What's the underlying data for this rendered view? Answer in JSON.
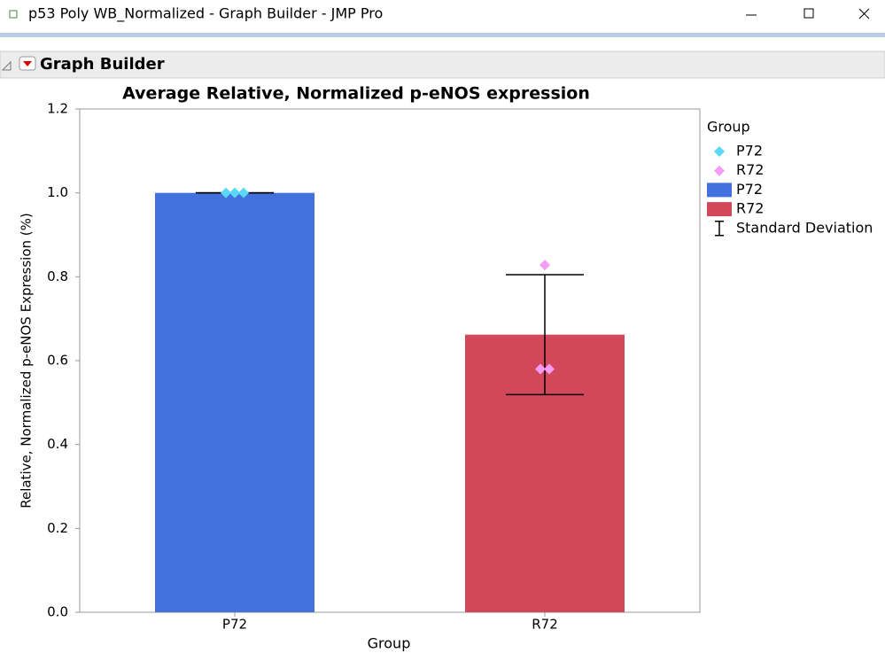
{
  "window": {
    "title": "p53 Poly WB_Normalized - Graph Builder - JMP Pro"
  },
  "panel": {
    "title": "Graph Builder"
  },
  "chart_data": {
    "type": "bar",
    "title": "Average Relative, Normalized p-eNOS expression",
    "x_label": "Group",
    "y_label": "Relative, Normalized p-eNOS Expression (%)",
    "categories": [
      "P72",
      "R72"
    ],
    "values": [
      1.0,
      0.662
    ],
    "errors": [
      0,
      0.143
    ],
    "colors": [
      "#4270dd",
      "#d2485a"
    ],
    "point_colors": [
      "#5ad8f5",
      "#f79cf5"
    ],
    "points": [
      [
        1.0,
        1.0,
        1.0
      ],
      [
        0.828,
        0.58,
        0.58
      ]
    ],
    "ylim": [
      0,
      1.2
    ],
    "yticks": [
      {
        "value": 0,
        "label": "0.0"
      },
      {
        "value": 0.2,
        "label": "0.2"
      },
      {
        "value": 0.4,
        "label": "0.4"
      },
      {
        "value": 0.6,
        "label": "0.6"
      },
      {
        "value": 0.8,
        "label": "0.8"
      },
      {
        "value": 1,
        "label": "1.0"
      },
      {
        "value": 1.2,
        "label": "1.2"
      }
    ],
    "legend_title": "Group",
    "error_label": "Standard Deviation"
  }
}
